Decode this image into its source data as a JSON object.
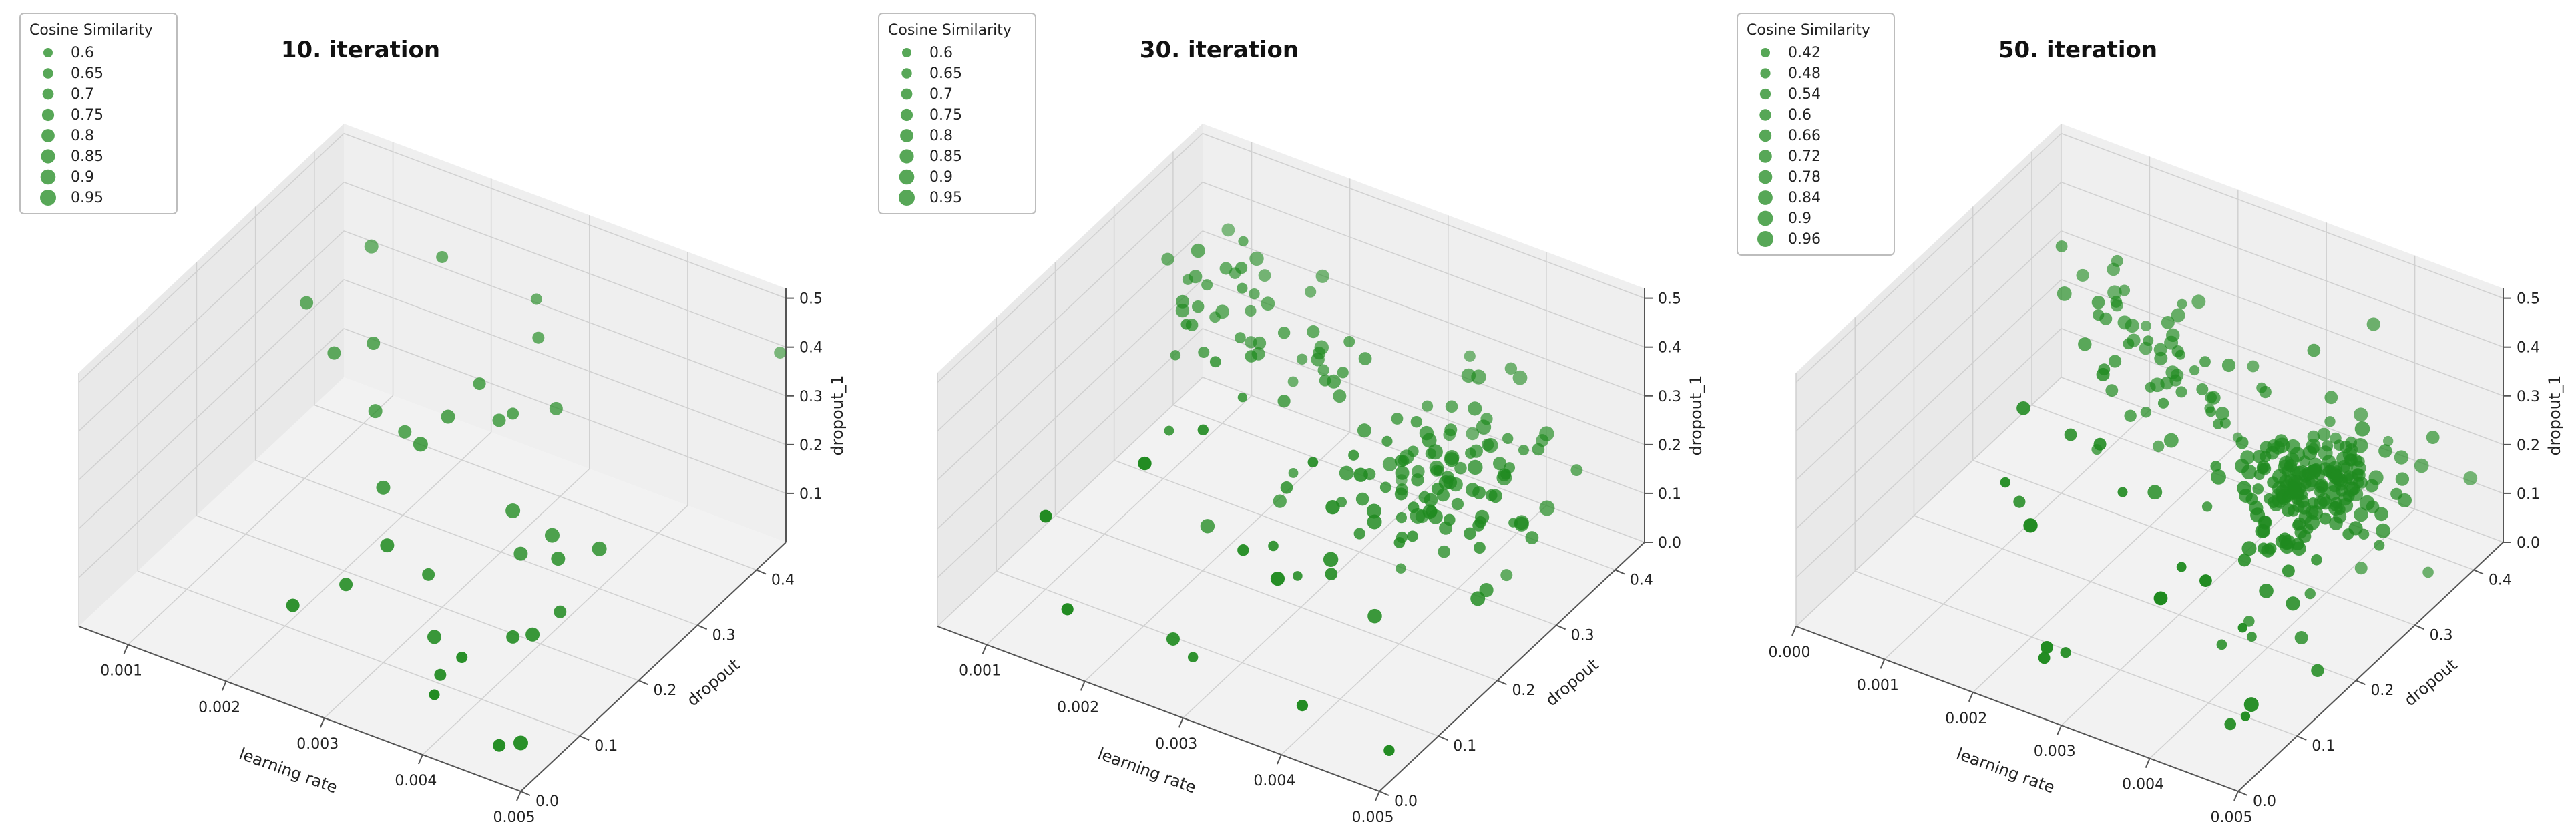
{
  "chart_data": [
    {
      "type": "scatter",
      "title": "10. iteration",
      "xlabel": "learning rate",
      "ylabel": "dropout",
      "zlabel": "dropout_1",
      "xlim": [
        0.0005,
        0.005
      ],
      "ylim": [
        0,
        0.45
      ],
      "zlim": [
        0,
        0.52
      ],
      "xticks": [
        "0.001",
        "0.002",
        "0.003",
        "0.004",
        "0.005"
      ],
      "yticks": [
        "0.0",
        "0.1",
        "0.2",
        "0.3",
        "0.4"
      ],
      "zticks": [
        "0.1",
        "0.2",
        "0.3",
        "0.4",
        "0.5"
      ],
      "grid": true,
      "legend": {
        "title": "Cosine Similarity",
        "placement": "top-left",
        "entries": [
          "0.6",
          "0.65",
          "0.7",
          "0.75",
          "0.8",
          "0.85",
          "0.9",
          "0.95"
        ]
      },
      "point_color": "#1f8a1f",
      "points": [
        [
          0.0012,
          0.38,
          0.4,
          0.85
        ],
        [
          0.0009,
          0.32,
          0.33,
          0.8
        ],
        [
          0.0013,
          0.3,
          0.28,
          0.8
        ],
        [
          0.0017,
          0.3,
          0.33,
          0.8
        ],
        [
          0.0019,
          0.27,
          0.24,
          0.85
        ],
        [
          0.0022,
          0.27,
          0.22,
          0.8
        ],
        [
          0.0021,
          0.35,
          0.48,
          0.7
        ],
        [
          0.0024,
          0.2,
          0.2,
          0.85
        ],
        [
          0.0026,
          0.23,
          0.27,
          0.9
        ],
        [
          0.0027,
          0.26,
          0.3,
          0.85
        ],
        [
          0.0029,
          0.28,
          0.36,
          0.75
        ],
        [
          0.0031,
          0.28,
          0.3,
          0.8
        ],
        [
          0.0033,
          0.27,
          0.34,
          0.7
        ],
        [
          0.003,
          0.36,
          0.45,
          0.65
        ],
        [
          0.0032,
          0.33,
          0.42,
          0.7
        ],
        [
          0.0035,
          0.31,
          0.32,
          0.8
        ],
        [
          0.0036,
          0.22,
          0.22,
          0.9
        ],
        [
          0.0038,
          0.2,
          0.17,
          0.85
        ],
        [
          0.004,
          0.22,
          0.2,
          0.9
        ],
        [
          0.0043,
          0.18,
          0.22,
          0.85
        ],
        [
          0.0046,
          0.2,
          0.24,
          0.9
        ],
        [
          0.0044,
          0.12,
          0.14,
          0.85
        ],
        [
          0.0045,
          0.15,
          0.16,
          0.75
        ],
        [
          0.005,
          0.44,
          0.4,
          0.7
        ],
        [
          0.0025,
          0.12,
          0.1,
          0.8
        ],
        [
          0.0028,
          0.14,
          0.18,
          0.85
        ],
        [
          0.0031,
          0.16,
          0.12,
          0.75
        ],
        [
          0.0034,
          0.12,
          0.06,
          0.85
        ],
        [
          0.0022,
          0.08,
          0.08,
          0.8
        ],
        [
          0.0037,
          0.08,
          0.05,
          0.7
        ],
        [
          0.0041,
          0.05,
          0.15,
          0.65
        ],
        [
          0.0042,
          0.12,
          0.12,
          0.8
        ],
        [
          0.0046,
          0.03,
          0.03,
          0.75
        ],
        [
          0.004,
          0.02,
          0.1,
          0.6
        ],
        [
          0.0047,
          0.05,
          0.02,
          0.9
        ]
      ]
    },
    {
      "type": "scatter",
      "title": "30. iteration",
      "xlabel": "learning rate",
      "ylabel": "dropout",
      "zlabel": "dropout_1",
      "xlim": [
        0.0005,
        0.005
      ],
      "ylim": [
        0,
        0.45
      ],
      "zlim": [
        0,
        0.52
      ],
      "xticks": [
        "0.001",
        "0.002",
        "0.003",
        "0.004",
        "0.005"
      ],
      "yticks": [
        "0.0",
        "0.1",
        "0.2",
        "0.3",
        "0.4"
      ],
      "zticks": [
        "0.0",
        "0.1",
        "0.2",
        "0.3",
        "0.4",
        "0.5"
      ],
      "grid": true,
      "legend": {
        "title": "Cosine Similarity",
        "placement": "top-left",
        "entries": [
          "0.6",
          "0.65",
          "0.7",
          "0.75",
          "0.8",
          "0.85",
          "0.9",
          "0.95"
        ]
      },
      "point_color": "#1f8a1f",
      "points": []
    },
    {
      "type": "scatter",
      "title": "50. iteration",
      "xlabel": "learning rate",
      "ylabel": "dropout",
      "zlabel": "dropout_1",
      "xlim": [
        0.0,
        0.005
      ],
      "ylim": [
        0,
        0.45
      ],
      "zlim": [
        0,
        0.52
      ],
      "xticks": [
        "0.000",
        "0.001",
        "0.002",
        "0.003",
        "0.004",
        "0.005"
      ],
      "yticks": [
        "0.0",
        "0.1",
        "0.2",
        "0.3",
        "0.4"
      ],
      "zticks": [
        "0.0",
        "0.1",
        "0.2",
        "0.3",
        "0.4",
        "0.5"
      ],
      "grid": true,
      "legend": {
        "title": "Cosine Similarity",
        "placement": "top-left",
        "entries": [
          "0.42",
          "0.48",
          "0.54",
          "0.6",
          "0.66",
          "0.72",
          "0.78",
          "0.84",
          "0.9",
          "0.96"
        ]
      },
      "point_color": "#1f8a1f",
      "points": []
    }
  ]
}
